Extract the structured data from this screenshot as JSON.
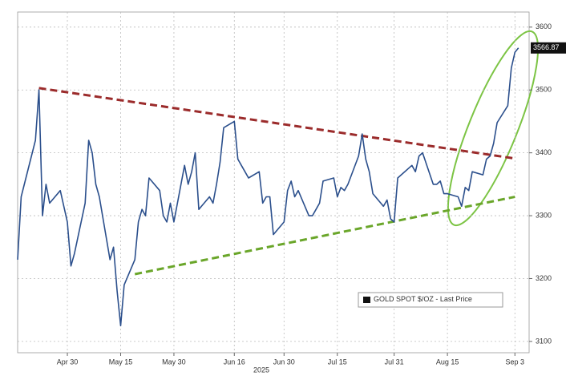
{
  "chart_data": {
    "type": "line",
    "xlabel": "2025",
    "x": [
      "2025-04-16",
      "2025-04-17",
      "2025-04-21",
      "2025-04-22",
      "2025-04-23",
      "2025-04-24",
      "2025-04-25",
      "2025-04-28",
      "2025-04-29",
      "2025-04-30",
      "2025-05-01",
      "2025-05-02",
      "2025-05-05",
      "2025-05-06",
      "2025-05-07",
      "2025-05-08",
      "2025-05-09",
      "2025-05-12",
      "2025-05-13",
      "2025-05-14",
      "2025-05-15",
      "2025-05-16",
      "2025-05-19",
      "2025-05-20",
      "2025-05-21",
      "2025-05-22",
      "2025-05-23",
      "2025-05-26",
      "2025-05-27",
      "2025-05-28",
      "2025-05-29",
      "2025-05-30",
      "2025-06-02",
      "2025-06-03",
      "2025-06-04",
      "2025-06-05",
      "2025-06-06",
      "2025-06-09",
      "2025-06-10",
      "2025-06-11",
      "2025-06-12",
      "2025-06-13",
      "2025-06-16",
      "2025-06-17",
      "2025-06-18",
      "2025-06-19",
      "2025-06-20",
      "2025-06-23",
      "2025-06-24",
      "2025-06-25",
      "2025-06-26",
      "2025-06-27",
      "2025-06-30",
      "2025-07-01",
      "2025-07-02",
      "2025-07-03",
      "2025-07-04",
      "2025-07-07",
      "2025-07-08",
      "2025-07-09",
      "2025-07-10",
      "2025-07-11",
      "2025-07-14",
      "2025-07-15",
      "2025-07-16",
      "2025-07-17",
      "2025-07-18",
      "2025-07-21",
      "2025-07-22",
      "2025-07-23",
      "2025-07-24",
      "2025-07-25",
      "2025-07-28",
      "2025-07-29",
      "2025-07-30",
      "2025-07-31",
      "2025-08-01",
      "2025-08-04",
      "2025-08-05",
      "2025-08-06",
      "2025-08-07",
      "2025-08-08",
      "2025-08-11",
      "2025-08-12",
      "2025-08-13",
      "2025-08-14",
      "2025-08-15",
      "2025-08-18",
      "2025-08-19",
      "2025-08-20",
      "2025-08-21",
      "2025-08-22",
      "2025-08-25",
      "2025-08-26",
      "2025-08-27",
      "2025-08-28",
      "2025-08-29",
      "2025-09-01",
      "2025-09-02",
      "2025-09-03",
      "2025-09-04"
    ],
    "series": [
      {
        "name": "GOLD SPOT $/OZ - Last Price",
        "color": "#2b4f8c",
        "values": [
          3230,
          3330,
          3420,
          3500,
          3300,
          3350,
          3320,
          3340,
          3315,
          3290,
          3220,
          3240,
          3320,
          3420,
          3400,
          3350,
          3330,
          3230,
          3250,
          3180,
          3125,
          3190,
          3230,
          3290,
          3310,
          3300,
          3360,
          3340,
          3300,
          3290,
          3320,
          3290,
          3380,
          3350,
          3370,
          3400,
          3310,
          3330,
          3320,
          3350,
          3385,
          3440,
          3450,
          3390,
          3380,
          3370,
          3360,
          3370,
          3320,
          3330,
          3330,
          3270,
          3290,
          3340,
          3355,
          3330,
          3340,
          3300,
          3300,
          3310,
          3320,
          3355,
          3360,
          3330,
          3345,
          3340,
          3350,
          3395,
          3430,
          3390,
          3370,
          3335,
          3315,
          3325,
          3295,
          3290,
          3360,
          3375,
          3380,
          3370,
          3395,
          3400,
          3350,
          3350,
          3355,
          3335,
          3335,
          3330,
          3315,
          3345,
          3340,
          3370,
          3365,
          3390,
          3395,
          3415,
          3448,
          3475,
          3535,
          3560,
          3566.87
        ]
      }
    ],
    "trendlines": [
      {
        "color": "#9b2b2b",
        "x": [
          "2025-04-22",
          "2025-09-03"
        ],
        "values": [
          3503,
          3391
        ]
      },
      {
        "color": "#6aa62a",
        "x": [
          "2025-05-19",
          "2025-09-03"
        ],
        "values": [
          3207,
          3330
        ]
      }
    ],
    "xlim": [
      "2025-04-16",
      "2025-09-07"
    ],
    "xticks": [
      {
        "value": "2025-04-30",
        "label": "Apr 30"
      },
      {
        "value": "2025-05-15",
        "label": "May 15"
      },
      {
        "value": "2025-05-30",
        "label": "May 30"
      },
      {
        "value": "2025-06-16",
        "label": "Jun 16"
      },
      {
        "value": "2025-06-30",
        "label": "Jun 30"
      },
      {
        "value": "2025-07-15",
        "label": "Jul 15"
      },
      {
        "value": "2025-07-31",
        "label": "Jul 31"
      },
      {
        "value": "2025-08-15",
        "label": "Aug 15"
      },
      {
        "value": "2025-09-03",
        "label": "Sep 3"
      }
    ],
    "ylim": [
      3082,
      3624
    ],
    "yticks": [
      3100,
      3200,
      3300,
      3400,
      3500,
      3600
    ],
    "grid": true
  }
}
